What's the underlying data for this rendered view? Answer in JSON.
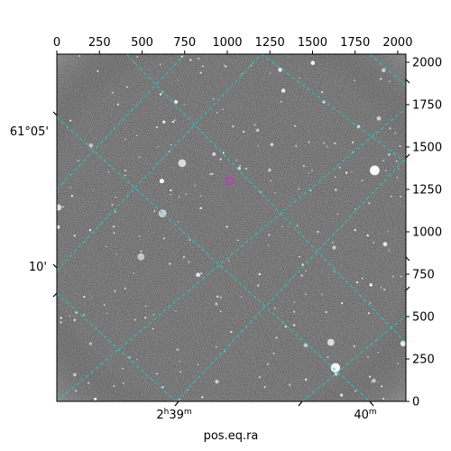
{
  "chart_data": {
    "type": "image",
    "xlabel": "pos.eq.ra",
    "ylabel": "",
    "pixel_axes": {
      "x_ticks": [
        0,
        250,
        500,
        750,
        1000,
        1250,
        1500,
        1750,
        2000
      ],
      "y_ticks": [
        0,
        250,
        500,
        750,
        1000,
        1250,
        1500,
        1750,
        2000
      ],
      "xlim": [
        0,
        2048
      ],
      "ylim": [
        0,
        2048
      ]
    },
    "world_axes": {
      "ra_tick_labels": [
        {
          "text": "2",
          "unit": "h",
          "rest": "39",
          "rest_unit": "m"
        },
        {
          "text": "40",
          "unit": "m",
          "rest": "",
          "rest_unit": ""
        }
      ],
      "dec_tick_labels": [
        "61°05'",
        "10'"
      ]
    },
    "grid": true,
    "grid_color": "#22cccc",
    "image_colormap": "gray",
    "marker": {
      "x": 1010,
      "y": 1300,
      "color": "#cc33cc"
    }
  }
}
